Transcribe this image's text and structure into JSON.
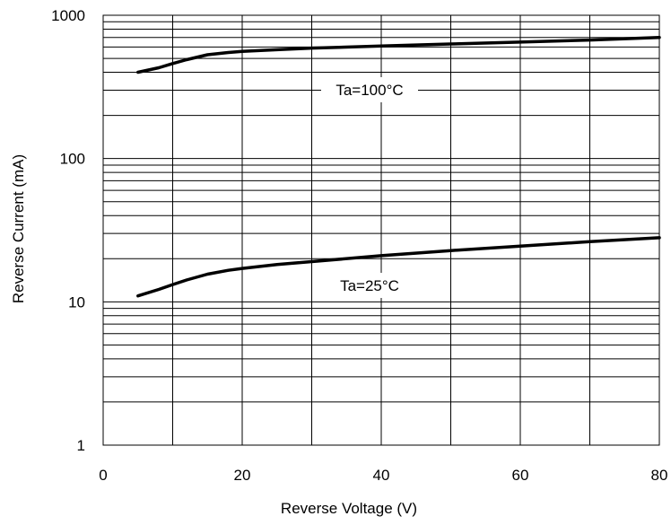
{
  "chart_data": {
    "type": "line",
    "title": "",
    "xlabel": "Reverse Voltage (V)",
    "ylabel": "Reverse Current (mA)",
    "xlim": [
      0,
      80
    ],
    "ylim": [
      1,
      1000
    ],
    "yscale": "log",
    "grid": true,
    "x_ticks": [
      0,
      20,
      40,
      60,
      80
    ],
    "x_tick_labels": [
      "0",
      "20",
      "40",
      "60",
      "80"
    ],
    "y_ticks": [
      1,
      10,
      100,
      1000
    ],
    "y_tick_labels": [
      "1",
      "10",
      "100",
      "1000"
    ],
    "line_color": "#000000",
    "series": [
      {
        "name": "Ta=100°C",
        "x": [
          5,
          8,
          10,
          12,
          15,
          18,
          20,
          25,
          30,
          40,
          50,
          60,
          70,
          80
        ],
        "y": [
          400,
          430,
          460,
          490,
          530,
          550,
          560,
          575,
          590,
          610,
          630,
          650,
          672,
          700
        ]
      },
      {
        "name": "Ta=25°C",
        "x": [
          5,
          8,
          10,
          12,
          15,
          18,
          20,
          25,
          30,
          40,
          50,
          60,
          70,
          80
        ],
        "y": [
          11,
          12.2,
          13.2,
          14.2,
          15.6,
          16.6,
          17.1,
          18.2,
          19.1,
          21,
          22.8,
          24.5,
          26.3,
          28
        ]
      }
    ]
  }
}
